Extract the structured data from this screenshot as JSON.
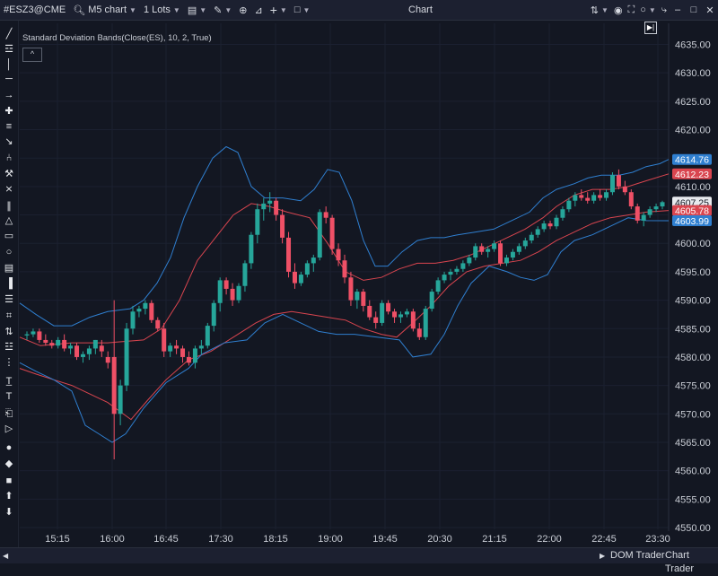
{
  "toolbar": {
    "symbol": "#ESZ3@CME",
    "timeframe": "M5 chart",
    "lots": "1 Lots",
    "window_title": "Chart"
  },
  "indicator": {
    "label": "Standard Deviation Bands(Close(ES), 10, 2, True)"
  },
  "bottom_tabs": {
    "dom_trader": "DOM Trader",
    "chart_trader": "Chart Trader"
  },
  "colors": {
    "background": "#131722",
    "up_candle": "#26a69a",
    "down_candle": "#ef5066",
    "band_blue": "#2f7fd0",
    "band_red": "#d9454f"
  },
  "chart_data": {
    "type": "candlestick",
    "y_ticks": [
      4550,
      4555,
      4560,
      4565,
      4570,
      4575,
      4580,
      4585,
      4590,
      4595,
      4600,
      4605,
      4610,
      4615,
      4620,
      4625,
      4630,
      4635
    ],
    "y_tick_labels": [
      "4550.00",
      "4555.00",
      "4560.00",
      "4565.00",
      "4570.00",
      "4575.00",
      "4580.00",
      "4585.00",
      "4590.00",
      "4595.00",
      "4600.00",
      "4605.00",
      "4610.00",
      "4615.00",
      "4620.00",
      "4625.00",
      "4630.00",
      "4635.00"
    ],
    "ylim": [
      4548.5,
      4638
    ],
    "x_ticks": [
      "15:15",
      "16:00",
      "16:45",
      "17:30",
      "18:15",
      "19:00",
      "19:45",
      "20:30",
      "21:15",
      "22:00",
      "22:45",
      "23:30"
    ],
    "price_labels": [
      {
        "value": 4614.76,
        "text": "4614.76",
        "color": "#2f7fd0"
      },
      {
        "value": 4612.23,
        "text": "4612.23",
        "color": "#d9454f"
      },
      {
        "value": 4607.25,
        "text": "4607.25",
        "color": "#d8dbe2"
      },
      {
        "value": 4605.78,
        "text": "4605.78",
        "color": "#d9454f"
      },
      {
        "value": 4603.99,
        "text": "4603.99",
        "color": "#2f7fd0"
      }
    ],
    "candles": [
      [
        4583.8,
        4584.5,
        4583.0,
        4584.0
      ],
      [
        4584.0,
        4585.0,
        4583.5,
        4584.5
      ],
      [
        4584.5,
        4585.0,
        4582.5,
        4583.0
      ],
      [
        4583.0,
        4584.0,
        4582.0,
        4582.5
      ],
      [
        4582.5,
        4583.0,
        4581.5,
        4582.0
      ],
      [
        4582.0,
        4583.5,
        4581.5,
        4583.0
      ],
      [
        4583.0,
        4584.0,
        4581.0,
        4581.5
      ],
      [
        4581.5,
        4582.5,
        4580.5,
        4582.0
      ],
      [
        4582.0,
        4582.5,
        4579.5,
        4580.0
      ],
      [
        4580.0,
        4581.0,
        4579.0,
        4580.5
      ],
      [
        4580.5,
        4582.0,
        4579.5,
        4581.5
      ],
      [
        4581.5,
        4583.0,
        4580.5,
        4583.0
      ],
      [
        4582.0,
        4583.0,
        4580.0,
        4581.0
      ],
      [
        4580.0,
        4581.0,
        4578.0,
        4579.0
      ],
      [
        4580.0,
        4590.0,
        4562.0,
        4570.0
      ],
      [
        4570.0,
        4576.0,
        4568.0,
        4575.0
      ],
      [
        4575.0,
        4586.0,
        4574.0,
        4585.0
      ],
      [
        4585.0,
        4589.0,
        4584.0,
        4588.0
      ],
      [
        4588.0,
        4589.0,
        4587.0,
        4588.5
      ],
      [
        4588.5,
        4590.0,
        4587.5,
        4589.5
      ],
      [
        4589.5,
        4590.0,
        4586.0,
        4586.5
      ],
      [
        4586.5,
        4587.0,
        4584.5,
        4585.0
      ],
      [
        4585.0,
        4586.0,
        4580.0,
        4581.0
      ],
      [
        4581.0,
        4582.5,
        4580.0,
        4582.0
      ],
      [
        4582.0,
        4583.0,
        4580.5,
        4581.5
      ],
      [
        4581.5,
        4582.0,
        4579.0,
        4580.0
      ],
      [
        4580.0,
        4581.0,
        4578.5,
        4579.0
      ],
      [
        4579.0,
        4582.0,
        4578.0,
        4581.5
      ],
      [
        4581.5,
        4583.0,
        4580.5,
        4582.0
      ],
      [
        4582.0,
        4586.0,
        4581.5,
        4585.5
      ],
      [
        4585.5,
        4590.0,
        4584.5,
        4589.5
      ],
      [
        4589.5,
        4594.0,
        4588.0,
        4593.5
      ],
      [
        4593.5,
        4594.0,
        4591.0,
        4592.0
      ],
      [
        4592.0,
        4593.0,
        4589.0,
        4590.0
      ],
      [
        4590.0,
        4593.0,
        4589.5,
        4592.5
      ],
      [
        4592.5,
        4597.0,
        4591.5,
        4596.5
      ],
      [
        4596.5,
        4602.0,
        4595.5,
        4601.5
      ],
      [
        4601.5,
        4607.0,
        4600.0,
        4606.0
      ],
      [
        4606.0,
        4608.0,
        4604.0,
        4607.0
      ],
      [
        4607.0,
        4609.0,
        4605.5,
        4607.5
      ],
      [
        4607.5,
        4608.0,
        4604.0,
        4605.0
      ],
      [
        4605.0,
        4606.0,
        4600.0,
        4601.0
      ],
      [
        4601.0,
        4602.0,
        4594.0,
        4595.0
      ],
      [
        4595.0,
        4596.5,
        4592.0,
        4593.0
      ],
      [
        4593.0,
        4595.0,
        4592.5,
        4594.5
      ],
      [
        4594.5,
        4597.0,
        4594.0,
        4596.5
      ],
      [
        4596.5,
        4598.0,
        4595.0,
        4597.5
      ],
      [
        4597.5,
        4606.0,
        4597.0,
        4605.5
      ],
      [
        4605.5,
        4606.5,
        4603.5,
        4604.5
      ],
      [
        4604.5,
        4605.0,
        4598.0,
        4599.0
      ],
      [
        4599.0,
        4600.0,
        4596.0,
        4597.0
      ],
      [
        4597.0,
        4598.0,
        4593.0,
        4594.0
      ],
      [
        4594.0,
        4595.0,
        4589.0,
        4590.0
      ],
      [
        4590.0,
        4592.0,
        4588.5,
        4591.5
      ],
      [
        4591.5,
        4592.0,
        4588.0,
        4589.0
      ],
      [
        4589.0,
        4590.0,
        4586.5,
        4587.0
      ],
      [
        4587.0,
        4588.0,
        4585.0,
        4586.0
      ],
      [
        4586.0,
        4590.0,
        4585.5,
        4589.5
      ],
      [
        4589.5,
        4590.0,
        4587.5,
        4588.0
      ],
      [
        4588.0,
        4588.5,
        4586.0,
        4587.0
      ],
      [
        4587.0,
        4588.0,
        4586.0,
        4587.5
      ],
      [
        4587.5,
        4588.5,
        4587.0,
        4588.0
      ],
      [
        4588.0,
        4588.5,
        4584.5,
        4585.0
      ],
      [
        4585.0,
        4586.0,
        4583.0,
        4583.5
      ],
      [
        4583.5,
        4589.0,
        4583.0,
        4588.5
      ],
      [
        4588.5,
        4592.0,
        4588.0,
        4591.5
      ],
      [
        4591.5,
        4594.0,
        4591.0,
        4593.5
      ],
      [
        4593.5,
        4595.0,
        4593.0,
        4594.5
      ],
      [
        4594.5,
        4595.5,
        4593.5,
        4595.0
      ],
      [
        4595.0,
        4596.0,
        4594.5,
        4595.5
      ],
      [
        4595.5,
        4597.0,
        4595.0,
        4596.5
      ],
      [
        4596.5,
        4598.0,
        4596.0,
        4597.5
      ],
      [
        4597.5,
        4600.0,
        4597.0,
        4599.5
      ],
      [
        4599.5,
        4600.0,
        4598.0,
        4598.5
      ],
      [
        4598.5,
        4599.5,
        4597.5,
        4599.0
      ],
      [
        4599.0,
        4600.5,
        4598.5,
        4600.0
      ],
      [
        4600.0,
        4600.5,
        4596.0,
        4596.5
      ],
      [
        4596.5,
        4598.0,
        4596.0,
        4597.5
      ],
      [
        4597.5,
        4599.0,
        4597.0,
        4598.5
      ],
      [
        4598.5,
        4600.0,
        4598.0,
        4599.5
      ],
      [
        4599.5,
        4601.0,
        4599.0,
        4600.5
      ],
      [
        4600.5,
        4602.0,
        4600.0,
        4601.5
      ],
      [
        4601.5,
        4603.0,
        4601.0,
        4602.5
      ],
      [
        4602.5,
        4604.0,
        4602.0,
        4603.5
      ],
      [
        4603.5,
        4604.0,
        4602.5,
        4603.0
      ],
      [
        4603.0,
        4605.0,
        4602.5,
        4604.5
      ],
      [
        4604.5,
        4606.5,
        4604.0,
        4606.0
      ],
      [
        4606.0,
        4608.0,
        4605.5,
        4607.5
      ],
      [
        4607.5,
        4609.0,
        4606.5,
        4608.5
      ],
      [
        4608.5,
        4609.5,
        4607.5,
        4608.0
      ],
      [
        4608.0,
        4609.0,
        4607.0,
        4607.5
      ],
      [
        4607.5,
        4609.0,
        4607.0,
        4608.5
      ],
      [
        4608.5,
        4609.5,
        4607.5,
        4608.0
      ],
      [
        4608.0,
        4609.5,
        4607.5,
        4609.0
      ],
      [
        4609.0,
        4612.5,
        4608.5,
        4612.0
      ],
      [
        4612.0,
        4613.0,
        4609.5,
        4610.0
      ],
      [
        4610.0,
        4611.0,
        4608.5,
        4609.0
      ],
      [
        4609.0,
        4609.5,
        4606.0,
        4606.5
      ],
      [
        4606.5,
        4607.0,
        4603.5,
        4604.0
      ],
      [
        4604.0,
        4605.5,
        4603.0,
        4605.0
      ],
      [
        4605.0,
        4606.5,
        4604.5,
        4606.0
      ],
      [
        4606.0,
        4607.0,
        4605.5,
        4606.5
      ],
      [
        4606.5,
        4607.5,
        4606.0,
        4607.25
      ]
    ],
    "bands": {
      "upper_blue": [
        [
          22,
          4589.5
        ],
        [
          40,
          4587.5
        ],
        [
          60,
          4585.5
        ],
        [
          80,
          4585.5
        ],
        [
          100,
          4587.0
        ],
        [
          120,
          4588.0
        ],
        [
          145,
          4588.5
        ],
        [
          160,
          4590.0
        ],
        [
          175,
          4593.0
        ],
        [
          190,
          4597.5
        ],
        [
          205,
          4604.5
        ],
        [
          220,
          4610.0
        ],
        [
          237,
          4615.0
        ],
        [
          252,
          4617.0
        ],
        [
          265,
          4616.0
        ],
        [
          280,
          4610.0
        ],
        [
          295,
          4608.0
        ],
        [
          315,
          4608.0
        ],
        [
          335,
          4607.5
        ],
        [
          350,
          4609.5
        ],
        [
          365,
          4613.0
        ],
        [
          378,
          4612.5
        ],
        [
          392,
          4607.5
        ],
        [
          405,
          4600.5
        ],
        [
          418,
          4596.0
        ],
        [
          432,
          4596.0
        ],
        [
          448,
          4598.5
        ],
        [
          465,
          4600.5
        ],
        [
          480,
          4601.0
        ],
        [
          495,
          4601.0
        ],
        [
          510,
          4601.5
        ],
        [
          530,
          4602.0
        ],
        [
          550,
          4602.5
        ],
        [
          570,
          4604.0
        ],
        [
          590,
          4605.5
        ],
        [
          605,
          4608.0
        ],
        [
          620,
          4609.5
        ],
        [
          640,
          4610.5
        ],
        [
          655,
          4611.5
        ],
        [
          670,
          4612.0
        ],
        [
          690,
          4612.0
        ],
        [
          705,
          4612.5
        ],
        [
          720,
          4613.5
        ],
        [
          735,
          4614.0
        ],
        [
          745,
          4614.76
        ]
      ],
      "upper_red": [
        [
          22,
          4583.5
        ],
        [
          45,
          4582.0
        ],
        [
          80,
          4582.5
        ],
        [
          120,
          4582.5
        ],
        [
          160,
          4583.0
        ],
        [
          180,
          4585.0
        ],
        [
          200,
          4590.0
        ],
        [
          220,
          4597.0
        ],
        [
          240,
          4601.0
        ],
        [
          260,
          4605.0
        ],
        [
          280,
          4607.0
        ],
        [
          300,
          4606.5
        ],
        [
          320,
          4605.5
        ],
        [
          345,
          4604.5
        ],
        [
          365,
          4600.0
        ],
        [
          385,
          4595.0
        ],
        [
          405,
          4593.5
        ],
        [
          425,
          4594.0
        ],
        [
          445,
          4595.5
        ],
        [
          465,
          4596.5
        ],
        [
          485,
          4596.5
        ],
        [
          505,
          4597.0
        ],
        [
          525,
          4598.0
        ],
        [
          545,
          4599.5
        ],
        [
          565,
          4601.0
        ],
        [
          585,
          4602.5
        ],
        [
          605,
          4604.5
        ],
        [
          620,
          4606.5
        ],
        [
          640,
          4608.5
        ],
        [
          660,
          4609.5
        ],
        [
          680,
          4609.5
        ],
        [
          700,
          4610.0
        ],
        [
          720,
          4611.0
        ],
        [
          745,
          4612.23
        ]
      ],
      "lower_red": [
        [
          22,
          4578.0
        ],
        [
          40,
          4577.0
        ],
        [
          60,
          4576.0
        ],
        [
          80,
          4575.0
        ],
        [
          100,
          4573.5
        ],
        [
          120,
          4572.0
        ],
        [
          146,
          4569.0
        ],
        [
          165,
          4572.5
        ],
        [
          185,
          4576.0
        ],
        [
          210,
          4579.5
        ],
        [
          235,
          4581.0
        ],
        [
          260,
          4583.5
        ],
        [
          285,
          4586.0
        ],
        [
          305,
          4587.5
        ],
        [
          325,
          4588.0
        ],
        [
          345,
          4587.5
        ],
        [
          365,
          4587.0
        ],
        [
          385,
          4586.5
        ],
        [
          405,
          4585.0
        ],
        [
          425,
          4584.0
        ],
        [
          442,
          4583.5
        ],
        [
          460,
          4586.0
        ],
        [
          480,
          4589.0
        ],
        [
          500,
          4592.5
        ],
        [
          520,
          4595.0
        ],
        [
          540,
          4596.0
        ],
        [
          560,
          4596.5
        ],
        [
          580,
          4597.0
        ],
        [
          600,
          4598.5
        ],
        [
          620,
          4600.5
        ],
        [
          640,
          4602.0
        ],
        [
          660,
          4603.5
        ],
        [
          680,
          4604.5
        ],
        [
          700,
          4605.0
        ],
        [
          720,
          4605.5
        ],
        [
          745,
          4605.78
        ]
      ],
      "lower_blue": [
        [
          22,
          4579.0
        ],
        [
          40,
          4577.5
        ],
        [
          60,
          4576.0
        ],
        [
          80,
          4574.0
        ],
        [
          95,
          4568.0
        ],
        [
          110,
          4566.5
        ],
        [
          125,
          4565.0
        ],
        [
          140,
          4566.5
        ],
        [
          160,
          4571.0
        ],
        [
          185,
          4575.5
        ],
        [
          210,
          4578.0
        ],
        [
          225,
          4580.5
        ],
        [
          250,
          4582.5
        ],
        [
          275,
          4583.0
        ],
        [
          295,
          4586.0
        ],
        [
          315,
          4587.5
        ],
        [
          335,
          4586.0
        ],
        [
          355,
          4584.5
        ],
        [
          375,
          4584.0
        ],
        [
          395,
          4584.0
        ],
        [
          420,
          4583.5
        ],
        [
          445,
          4583.0
        ],
        [
          460,
          4580.0
        ],
        [
          480,
          4580.5
        ],
        [
          495,
          4584.0
        ],
        [
          510,
          4589.0
        ],
        [
          525,
          4593.0
        ],
        [
          545,
          4596.0
        ],
        [
          565,
          4595.0
        ],
        [
          580,
          4594.0
        ],
        [
          595,
          4593.5
        ],
        [
          610,
          4594.5
        ],
        [
          625,
          4598.5
        ],
        [
          640,
          4600.5
        ],
        [
          660,
          4601.5
        ],
        [
          680,
          4603.0
        ],
        [
          700,
          4604.5
        ],
        [
          720,
          4604.0
        ],
        [
          745,
          4603.99
        ]
      ]
    }
  },
  "left_tools": [
    "line-tool",
    "fib-tool",
    "vertical-line-tool",
    "horizontal-line-tool",
    "arrow-tool",
    "crosshair-tool",
    "levels-tool",
    "ray-tool",
    "pitchfork-tool",
    "gann-tool",
    "ruler-tool",
    "channel-tool",
    "triangle-tool",
    "rectangle-tool",
    "circle-tool",
    "region-tool",
    "volume-profile-tool",
    "bars-tool",
    "grid-tool",
    "measure-tool",
    "pattern-tool",
    "separator",
    "text-box-tool",
    "text-tool",
    "label-tool",
    "tag-tool",
    "dot-marker",
    "diamond-marker",
    "square-marker",
    "arrow-up-marker",
    "arrow-down-marker"
  ]
}
